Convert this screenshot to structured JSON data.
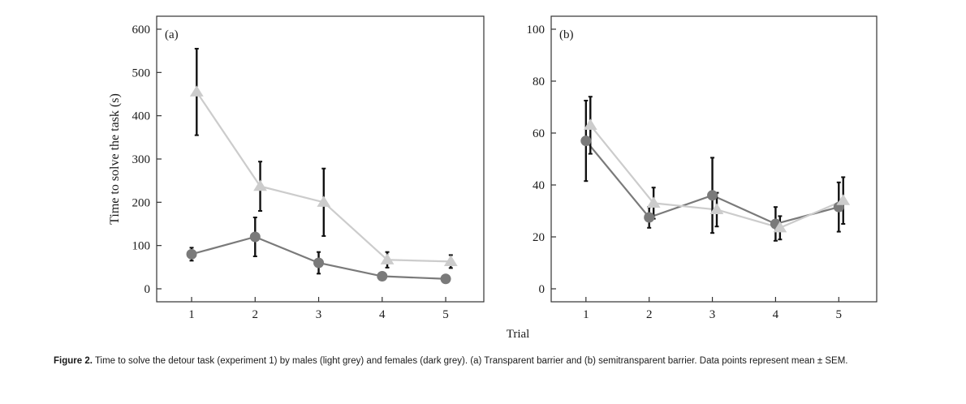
{
  "figure": {
    "shared_xlabel": "Trial",
    "caption": {
      "label": "Figure 2.",
      "text": "Time to solve the detour task (experiment 1) by males (light grey) and females (dark grey). (a) Transparent barrier and (b) semitransparent barrier. Data points represent mean ± SEM."
    }
  },
  "colors": {
    "males": "#cccccc",
    "females": "#7a7a7a",
    "errorbar": "#111111",
    "axis": "#333333"
  },
  "chart_data": [
    {
      "type": "line",
      "panel_label": "(a)",
      "ylabel": "Time to solve the task (s)",
      "xlabel": "",
      "ylim": [
        -30,
        630
      ],
      "xlim": [
        0.45,
        5.6
      ],
      "yticks": [
        0,
        100,
        200,
        300,
        400,
        500,
        600
      ],
      "xticks": [
        1,
        2,
        3,
        4,
        5
      ],
      "series": [
        {
          "key": "females",
          "marker": "circle",
          "x": [
            1,
            2,
            3,
            4,
            5
          ],
          "y": [
            80,
            120,
            60,
            29,
            23
          ],
          "err": [
            15,
            45,
            25,
            0,
            0
          ]
        },
        {
          "key": "males",
          "marker": "triangle",
          "x": [
            1,
            2,
            3,
            4,
            5
          ],
          "y": [
            455,
            237,
            200,
            67,
            63
          ],
          "err": [
            100,
            57,
            78,
            18,
            15
          ]
        }
      ]
    },
    {
      "type": "line",
      "panel_label": "(b)",
      "ylabel": "",
      "xlabel": "",
      "ylim": [
        -5,
        105
      ],
      "xlim": [
        0.45,
        5.6
      ],
      "yticks": [
        0,
        20,
        40,
        60,
        80,
        100
      ],
      "xticks": [
        1,
        2,
        3,
        4,
        5
      ],
      "series": [
        {
          "key": "females",
          "marker": "circle",
          "x": [
            1,
            2,
            3,
            4,
            5
          ],
          "y": [
            57,
            27.5,
            36,
            25,
            31.5
          ],
          "err": [
            15.5,
            4,
            14.5,
            6.5,
            9.5
          ]
        },
        {
          "key": "males",
          "marker": "triangle",
          "x": [
            1,
            2,
            3,
            4,
            5
          ],
          "y": [
            63,
            33,
            30.5,
            23.5,
            34
          ],
          "err": [
            11,
            6,
            6.5,
            4.5,
            9
          ]
        }
      ]
    }
  ]
}
